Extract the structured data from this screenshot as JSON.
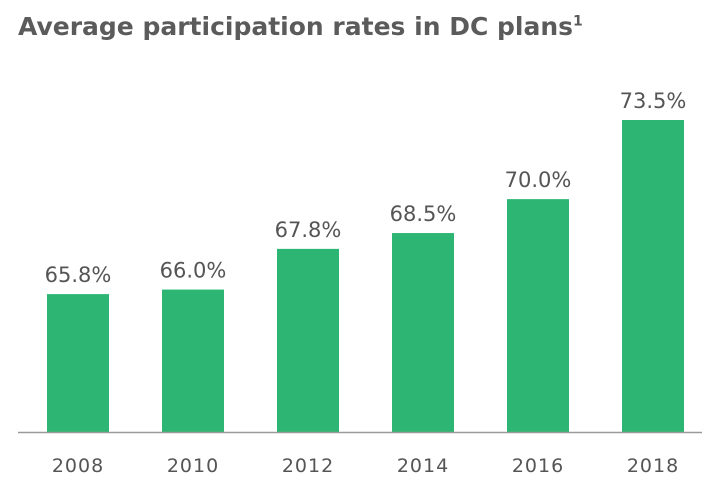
{
  "chart_data": {
    "type": "bar",
    "title": "Average participation rates in DC plans",
    "title_footnote": "1",
    "categories": [
      "2008",
      "2010",
      "2012",
      "2014",
      "2016",
      "2018"
    ],
    "values": [
      65.8,
      66.0,
      67.8,
      68.5,
      70.0,
      73.5
    ],
    "data_labels": [
      "65.8%",
      "66.0%",
      "67.8%",
      "68.5%",
      "70.0%",
      "73.5%"
    ],
    "xlabel": "",
    "ylabel": "",
    "ylim": [
      59.7,
      73.5
    ],
    "grid": false,
    "legend": "none",
    "colors": {
      "bar": "#2db673",
      "axis": "#9a9a9a",
      "text": "#555555",
      "title": "#5b5b5b"
    }
  }
}
